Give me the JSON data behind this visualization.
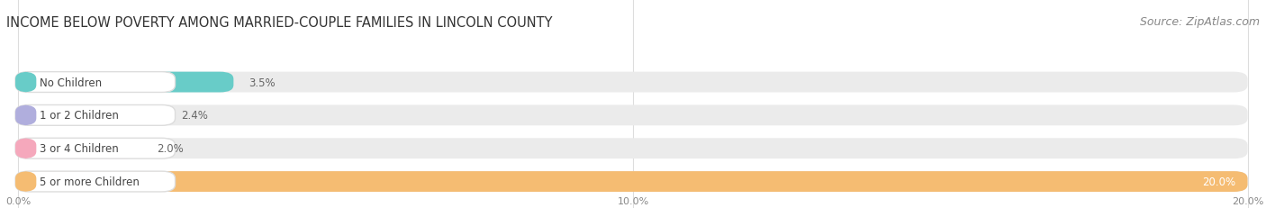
{
  "title": "INCOME BELOW POVERTY AMONG MARRIED-COUPLE FAMILIES IN LINCOLN COUNTY",
  "source": "Source: ZipAtlas.com",
  "categories": [
    "No Children",
    "1 or 2 Children",
    "3 or 4 Children",
    "5 or more Children"
  ],
  "values": [
    3.5,
    2.4,
    2.0,
    20.0
  ],
  "bar_colors": [
    "#68ccc8",
    "#b0aedd",
    "#f5a8bc",
    "#f5bc72"
  ],
  "bar_bg_color": "#ebebeb",
  "label_bg_color": "#ffffff",
  "xlim_max": 20.0,
  "xticks": [
    0.0,
    10.0,
    20.0
  ],
  "xticklabels": [
    "0.0%",
    "10.0%",
    "20.0%"
  ],
  "title_fontsize": 10.5,
  "source_fontsize": 9,
  "label_fontsize": 8.5,
  "value_fontsize": 8.5,
  "background_color": "#ffffff",
  "bar_height": 0.62,
  "value_inside_color": "#ffffff",
  "value_outside_color": "#666666",
  "tick_label_color": "#888888",
  "label_text_color": "#444444",
  "title_color": "#333333",
  "source_color": "#888888",
  "grid_color": "#dddddd"
}
